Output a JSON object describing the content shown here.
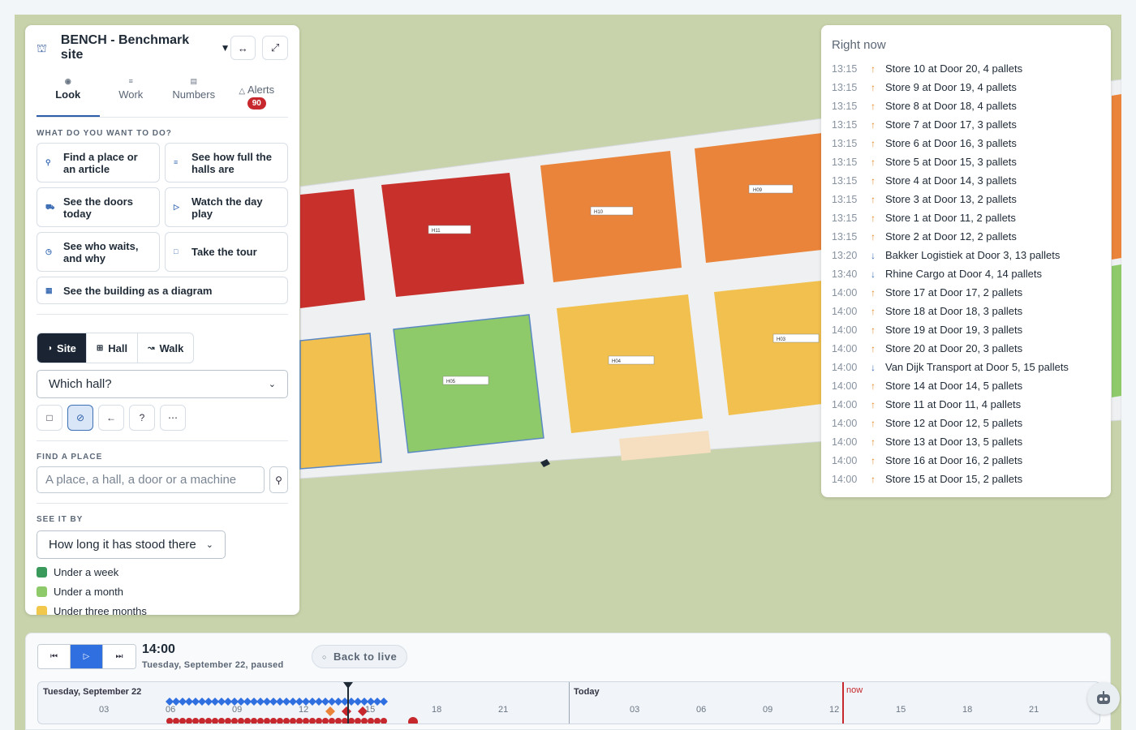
{
  "header": {
    "site_title": "BENCH - Benchmark site"
  },
  "tabs": [
    {
      "label": "Look",
      "icon": "eye-icon"
    },
    {
      "label": "Work",
      "icon": "list-icon"
    },
    {
      "label": "Numbers",
      "icon": "bar-chart-icon"
    },
    {
      "label": "Alerts",
      "icon": "warning-icon",
      "badge": "90"
    }
  ],
  "actions": {
    "section_label": "WHAT DO YOU WANT TO DO?",
    "items": [
      {
        "label": "Find a place or an article",
        "icon": "search-icon"
      },
      {
        "label": "See how full the halls are",
        "icon": "layers-icon"
      },
      {
        "label": "See the doors today",
        "icon": "truck-icon"
      },
      {
        "label": "Watch the day play",
        "icon": "play-icon"
      },
      {
        "label": "See who waits, and why",
        "icon": "clock-icon"
      },
      {
        "label": "Take the tour",
        "icon": "square-icon"
      },
      {
        "label": "See the building as a diagram",
        "icon": "grid-icon"
      }
    ]
  },
  "view_modes": [
    {
      "label": "Site",
      "icon": "globe-icon",
      "active": true
    },
    {
      "label": "Hall",
      "icon": "grid-icon",
      "active": false
    },
    {
      "label": "Walk",
      "icon": "walk-icon",
      "active": false
    }
  ],
  "hall_select": {
    "value": "Which hall?"
  },
  "tools": [
    "frame-icon",
    "eye-off-icon",
    "arrow-left-icon",
    "help-icon",
    "more-icon"
  ],
  "find_place": {
    "section_label": "FIND A PLACE",
    "placeholder": "A place, a hall, a door or a machine"
  },
  "see_it_by": {
    "section_label": "SEE IT BY",
    "value": "How long it has stood there",
    "legend": [
      {
        "label": "Under a week",
        "color": "#3a9a5c"
      },
      {
        "label": "Under a month",
        "color": "#8ec96a"
      },
      {
        "label": "Under three months",
        "color": "#f1c84b"
      }
    ]
  },
  "right_now": {
    "title": "Right now",
    "events": [
      {
        "time": "13:15",
        "dir": "out",
        "text": "Store 10 at Door 20, 4 pallets"
      },
      {
        "time": "13:15",
        "dir": "out",
        "text": "Store 9 at Door 19, 4 pallets"
      },
      {
        "time": "13:15",
        "dir": "out",
        "text": "Store 8 at Door 18, 4 pallets"
      },
      {
        "time": "13:15",
        "dir": "out",
        "text": "Store 7 at Door 17, 3 pallets"
      },
      {
        "time": "13:15",
        "dir": "out",
        "text": "Store 6 at Door 16, 3 pallets"
      },
      {
        "time": "13:15",
        "dir": "out",
        "text": "Store 5 at Door 15, 3 pallets"
      },
      {
        "time": "13:15",
        "dir": "out",
        "text": "Store 4 at Door 14, 3 pallets"
      },
      {
        "time": "13:15",
        "dir": "out",
        "text": "Store 3 at Door 13, 2 pallets"
      },
      {
        "time": "13:15",
        "dir": "out",
        "text": "Store 1 at Door 11, 2 pallets"
      },
      {
        "time": "13:15",
        "dir": "out",
        "text": "Store 2 at Door 12, 2 pallets"
      },
      {
        "time": "13:20",
        "dir": "in",
        "text": "Bakker Logistiek at Door 3, 13 pallets"
      },
      {
        "time": "13:40",
        "dir": "in",
        "text": "Rhine Cargo at Door 4, 14 pallets"
      },
      {
        "time": "14:00",
        "dir": "out",
        "text": "Store 17 at Door 17, 2 pallets"
      },
      {
        "time": "14:00",
        "dir": "out",
        "text": "Store 18 at Door 18, 3 pallets"
      },
      {
        "time": "14:00",
        "dir": "out",
        "text": "Store 19 at Door 19, 3 pallets"
      },
      {
        "time": "14:00",
        "dir": "out",
        "text": "Store 20 at Door 20, 3 pallets"
      },
      {
        "time": "14:00",
        "dir": "in",
        "text": "Van Dijk Transport at Door 5, 15 pallets"
      },
      {
        "time": "14:00",
        "dir": "out",
        "text": "Store 14 at Door 14, 5 pallets"
      },
      {
        "time": "14:00",
        "dir": "out",
        "text": "Store 11 at Door 11, 4 pallets"
      },
      {
        "time": "14:00",
        "dir": "out",
        "text": "Store 12 at Door 12, 5 pallets"
      },
      {
        "time": "14:00",
        "dir": "out",
        "text": "Store 13 at Door 13, 5 pallets"
      },
      {
        "time": "14:00",
        "dir": "out",
        "text": "Store 16 at Door 16, 2 pallets"
      },
      {
        "time": "14:00",
        "dir": "out",
        "text": "Store 15 at Door 15, 2 pallets"
      }
    ]
  },
  "timeline": {
    "time": "14:00",
    "date_status": "Tuesday, September 22, paused",
    "back_to_live": "Back to live",
    "day1_label": "Tuesday, September 22",
    "day2_label": "Today",
    "now_label": "now",
    "day1_hours": [
      "03",
      "06",
      "09",
      "12",
      "15",
      "18",
      "21"
    ],
    "day2_hours": [
      "03",
      "06",
      "09",
      "12",
      "15",
      "18",
      "21"
    ]
  },
  "map_labels": [
    "H11",
    "H10",
    "H09",
    "H05",
    "H04",
    "H03"
  ],
  "colors": {
    "accent": "#2f6fe0",
    "alert": "#c6282d",
    "red_hall": "#c8302c",
    "orange_hall": "#e9843a",
    "yellow_hall": "#f1c04e",
    "green_hall": "#8ec96a",
    "ground": "#c8d3ab"
  }
}
